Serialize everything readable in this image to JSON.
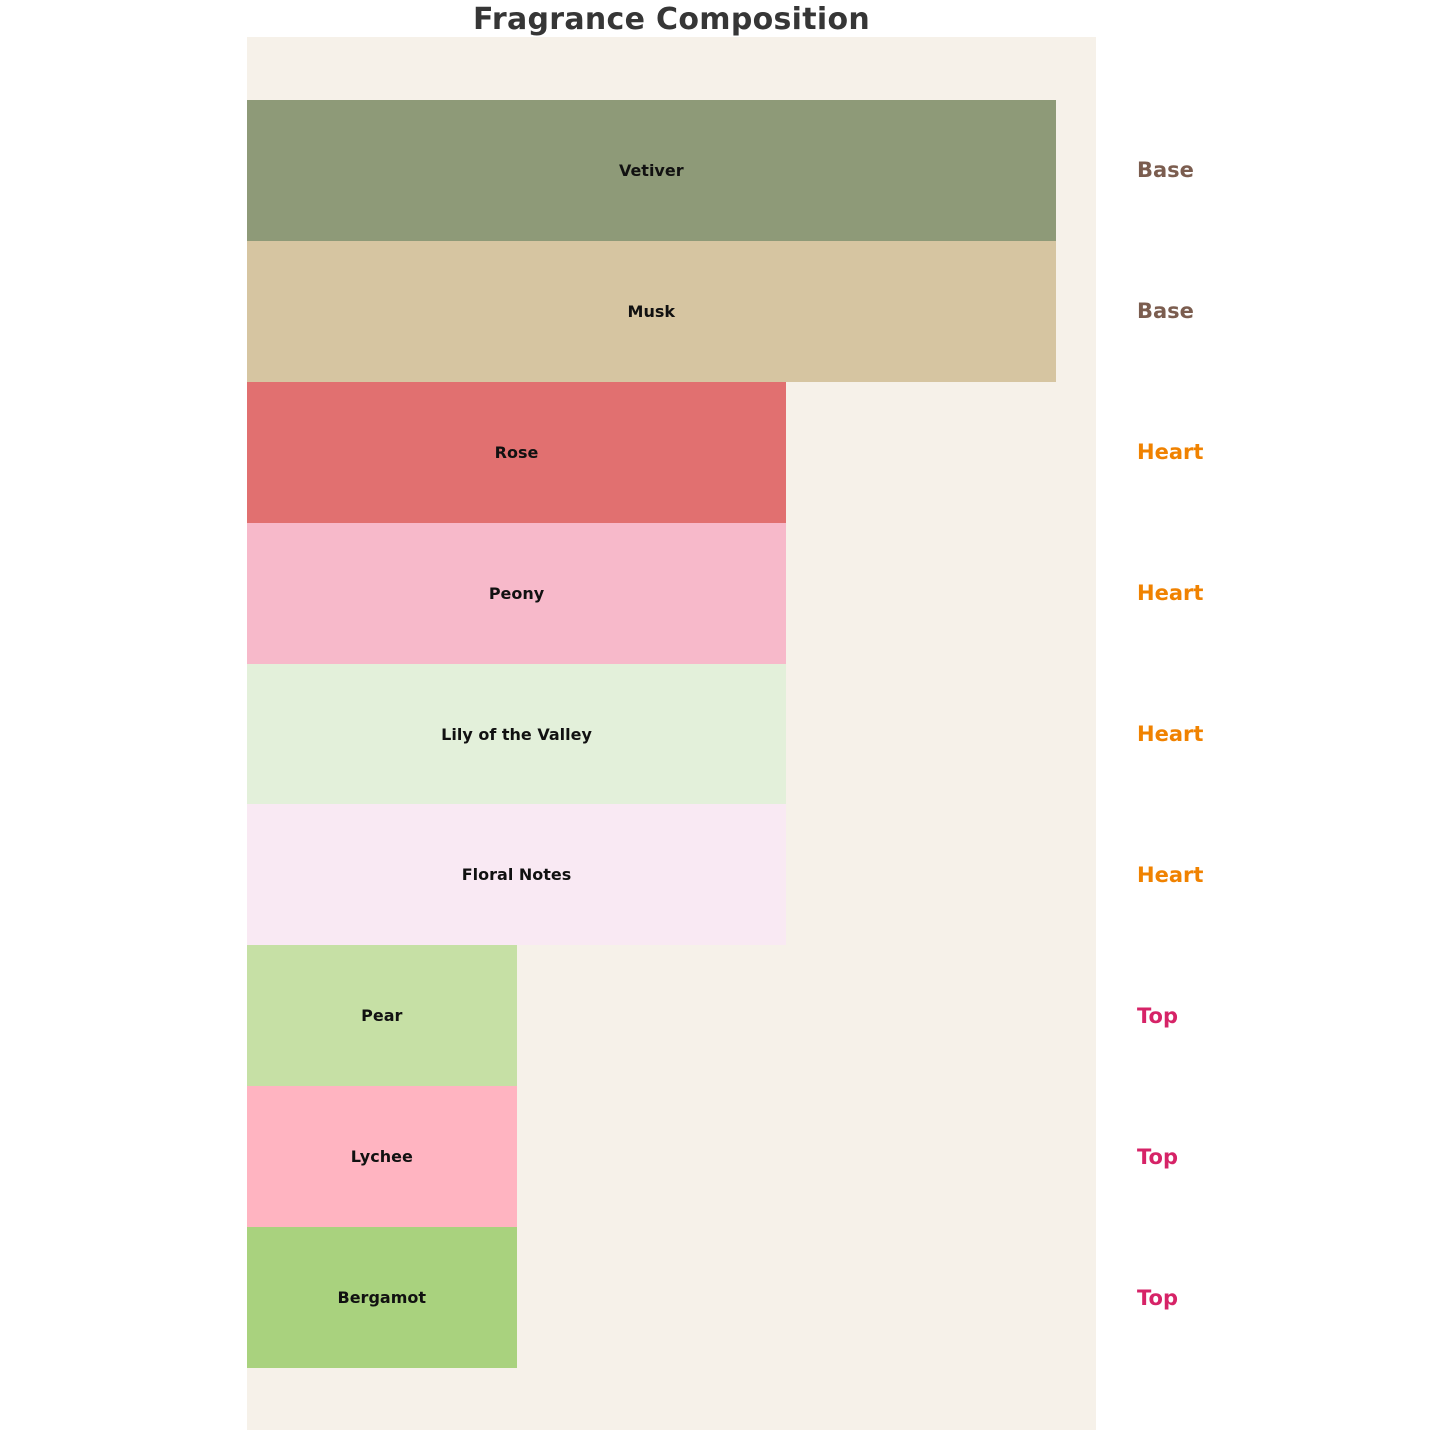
{
  "title": "Fragrance Composition",
  "chart_data": {
    "type": "bar",
    "orientation": "horizontal",
    "title": "Fragrance Composition",
    "categories": [
      "Vetiver",
      "Musk",
      "Rose",
      "Peony",
      "Lily of the Valley",
      "Floral Notes",
      "Pear",
      "Lychee",
      "Bergamot"
    ],
    "values": [
      3,
      3,
      2,
      2,
      2,
      2,
      1,
      1,
      1
    ],
    "groups": [
      "Base",
      "Base",
      "Heart",
      "Heart",
      "Heart",
      "Heart",
      "Top",
      "Top",
      "Top"
    ],
    "bar_colors": [
      "#8E9A78",
      "#D6C5A1",
      "#E17070",
      "#F7B9CA",
      "#E3F0DA",
      "#F9E9F3",
      "#C6E0A5",
      "#FFB4C1",
      "#A9D27E"
    ],
    "group_label_colors": {
      "Base": "#7B5D4F",
      "Heart": "#F08200",
      "Top": "#D62367"
    },
    "xlim": [
      0,
      3.15
    ],
    "grid": false,
    "legend": false,
    "axes_hidden": true,
    "plot_background": "#F6F1E9",
    "bar_label_color": "#111111",
    "title_color": "#363636"
  }
}
